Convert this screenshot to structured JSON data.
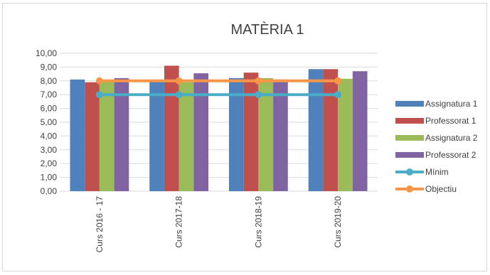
{
  "chart_data": {
    "type": "bar",
    "title": "MATÈRIA 1",
    "categories": [
      "Curs 2016 - 17",
      "Curs 2017-18",
      "Curs 2018-19",
      "Curs 2019-20"
    ],
    "ylim": [
      0,
      10
    ],
    "y_ticks": [
      "0,00",
      "1,00",
      "2,00",
      "3,00",
      "4,00",
      "5,00",
      "6,00",
      "7,00",
      "8,00",
      "9,00",
      "10,00"
    ],
    "grid": true,
    "legend_position": "right",
    "series": [
      {
        "name": "Assignatura 1",
        "kind": "bar",
        "color": "#4f81bd",
        "values": [
          8.1,
          8.0,
          8.2,
          8.85
        ]
      },
      {
        "name": "Professorat 1",
        "kind": "bar",
        "color": "#c0504d",
        "values": [
          7.9,
          9.1,
          8.6,
          8.85
        ]
      },
      {
        "name": "Assignatura 2",
        "kind": "bar",
        "color": "#9bbb59",
        "values": [
          8.1,
          7.9,
          8.2,
          8.15
        ]
      },
      {
        "name": "Professorat 2",
        "kind": "bar",
        "color": "#8064a2",
        "values": [
          8.2,
          8.55,
          8.1,
          8.7
        ]
      },
      {
        "name": "Mínim",
        "kind": "line",
        "color": "#4bacc6",
        "values": [
          7.0,
          7.0,
          7.0,
          7.0
        ]
      },
      {
        "name": "Objectiu",
        "kind": "line",
        "color": "#f79646",
        "values": [
          8.0,
          8.0,
          8.0,
          8.0
        ]
      }
    ]
  }
}
